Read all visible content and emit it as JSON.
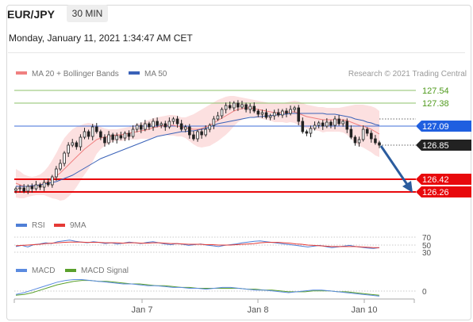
{
  "header": {
    "pair": "EUR/JPY",
    "timeframe": "30 MIN",
    "datetime": "Monday, January 11, 2021 1:34:47 AM CET"
  },
  "legend": {
    "ma20_bb": "MA 20 + Bollinger Bands",
    "ma50": "MA 50",
    "credit": "Research © 2021 Trading Central"
  },
  "colors": {
    "ma20": "#f08080",
    "band": "#fbd3d3",
    "ma50": "#3a62b8",
    "up": "#2a2a2a",
    "down": "#2a2a2a",
    "resistance": "#8cc06a",
    "pivot_line": "#3f6fd8",
    "support": "#e8090c",
    "arrow": "#2b5c9e",
    "rsi": "#4f7fd6",
    "rsi9ma": "#e53935",
    "macd": "#5b8be0",
    "macd_signal": "#5aa02c"
  },
  "levels": [
    {
      "value": "127.54",
      "kind": "resistance"
    },
    {
      "value": "127.38",
      "kind": "resistance"
    },
    {
      "value": "127.09",
      "kind": "pivot"
    },
    {
      "value": "126.85",
      "kind": "last"
    },
    {
      "value": "126.42",
      "kind": "support"
    },
    {
      "value": "126.26",
      "kind": "support"
    }
  ],
  "rsi_panel": {
    "label": "RSI",
    "ma_label": "9MA",
    "ticks": [
      "70",
      "50",
      "30"
    ]
  },
  "macd_panel": {
    "label": "MACD",
    "signal_label": "MACD Signal",
    "tick": "0"
  },
  "xaxis": [
    "Jan 7",
    "Jan 8",
    "Jan 10"
  ],
  "chart_data": {
    "type": "candlestick",
    "symbol": "EUR/JPY",
    "interval": "30 MIN",
    "ylim": [
      126.0,
      127.7
    ],
    "close_series": [
      126.3,
      126.31,
      126.27,
      126.33,
      126.3,
      126.35,
      126.32,
      126.38,
      126.35,
      126.45,
      126.55,
      126.62,
      126.75,
      126.85,
      126.88,
      126.83,
      126.95,
      127.02,
      126.96,
      127.08,
      127.02,
      126.95,
      126.88,
      126.98,
      126.92,
      126.97,
      126.94,
      127.0,
      126.96,
      127.05,
      127.1,
      127.05,
      127.12,
      127.08,
      127.15,
      127.1,
      127.12,
      127.08,
      127.15,
      127.18,
      127.12,
      127.05,
      127.08,
      126.98,
      126.93,
      127.02,
      126.98,
      127.05,
      127.1,
      127.18,
      127.22,
      127.3,
      127.35,
      127.32,
      127.38,
      127.33,
      127.36,
      127.3,
      127.34,
      127.28,
      127.24,
      127.26,
      127.2,
      127.22,
      127.26,
      127.23,
      127.28,
      127.25,
      127.3,
      127.32,
      127.15,
      127.02,
      127.0,
      127.06,
      127.1,
      127.13,
      127.09,
      127.14,
      127.1,
      127.18,
      127.12,
      127.15,
      127.05,
      126.95,
      126.88,
      126.92,
      127.05,
      127.0,
      126.93,
      126.88,
      126.85
    ],
    "ma20": [
      126.37,
      126.35,
      126.33,
      126.33,
      126.33,
      126.34,
      126.35,
      126.37,
      126.39,
      126.42,
      126.46,
      126.5,
      126.55,
      126.6,
      126.65,
      126.7,
      126.75,
      126.8,
      126.84,
      126.88,
      126.92,
      126.94,
      126.95,
      126.96,
      126.97,
      126.98,
      126.98,
      126.99,
      127.0,
      127.01,
      127.02,
      127.03,
      127.04,
      127.05,
      127.07,
      127.08,
      127.09,
      127.1,
      127.1,
      127.1,
      127.09,
      127.08,
      127.07,
      127.06,
      127.05,
      127.05,
      127.06,
      127.08,
      127.1,
      127.13,
      127.16,
      127.19,
      127.22,
      127.25,
      127.28,
      127.3,
      127.31,
      127.32,
      127.32,
      127.31,
      127.3,
      127.29,
      127.28,
      127.27,
      127.26,
      127.26,
      127.26,
      127.26,
      127.27,
      127.27,
      127.25,
      127.23,
      127.21,
      127.2,
      127.19,
      127.18,
      127.17,
      127.17,
      127.17,
      127.17,
      127.17,
      127.17,
      127.16,
      127.14,
      127.12,
      127.1,
      127.09,
      127.07,
      127.05,
      127.02,
      126.99
    ],
    "band_upper": [
      126.55,
      126.52,
      126.48,
      126.46,
      126.45,
      126.46,
      126.48,
      126.52,
      126.58,
      126.66,
      126.75,
      126.85,
      126.94,
      127.0,
      127.05,
      127.08,
      127.1,
      127.12,
      127.13,
      127.12,
      127.1,
      127.08,
      127.06,
      127.05,
      127.05,
      127.05,
      127.06,
      127.07,
      127.08,
      127.1,
      127.12,
      127.13,
      127.15,
      127.17,
      127.19,
      127.2,
      127.21,
      127.22,
      127.23,
      127.23,
      127.22,
      127.2,
      127.2,
      127.22,
      127.24,
      127.27,
      127.3,
      127.33,
      127.36,
      127.39,
      127.42,
      127.44,
      127.46,
      127.47,
      127.47,
      127.46,
      127.45,
      127.44,
      127.43,
      127.42,
      127.41,
      127.4,
      127.39,
      127.38,
      127.38,
      127.38,
      127.38,
      127.39,
      127.4,
      127.41,
      127.4,
      127.38,
      127.36,
      127.35,
      127.34,
      127.33,
      127.33,
      127.32,
      127.32,
      127.32,
      127.32,
      127.33,
      127.34,
      127.35,
      127.36,
      127.36,
      127.36,
      127.35,
      127.34,
      127.32,
      127.28
    ],
    "band_lower": [
      126.19,
      126.18,
      126.18,
      126.2,
      126.21,
      126.22,
      126.22,
      126.22,
      126.2,
      126.18,
      126.17,
      126.15,
      126.16,
      126.2,
      126.25,
      126.32,
      126.4,
      126.48,
      126.55,
      126.64,
      126.74,
      126.8,
      126.84,
      126.87,
      126.89,
      126.91,
      126.9,
      126.91,
      126.92,
      126.92,
      126.92,
      126.93,
      126.93,
      126.93,
      126.95,
      126.96,
      126.97,
      126.98,
      126.97,
      126.97,
      126.96,
      126.96,
      126.94,
      126.9,
      126.86,
      126.83,
      126.82,
      126.83,
      126.84,
      126.87,
      126.9,
      126.94,
      126.98,
      127.03,
      127.09,
      127.14,
      127.17,
      127.2,
      127.21,
      127.2,
      127.19,
      127.18,
      127.17,
      127.16,
      127.14,
      127.14,
      127.14,
      127.13,
      127.14,
      127.13,
      127.1,
      127.08,
      127.06,
      127.05,
      127.04,
      127.03,
      127.01,
      127.02,
      127.02,
      127.02,
      127.02,
      127.01,
      126.98,
      126.93,
      126.88,
      126.84,
      126.82,
      126.79,
      126.76,
      126.72,
      126.7
    ],
    "ma50": [
      126.33,
      126.33,
      126.33,
      126.33,
      126.34,
      126.34,
      126.35,
      126.36,
      126.37,
      126.38,
      126.39,
      126.41,
      126.43,
      126.45,
      126.47,
      126.5,
      126.53,
      126.56,
      126.59,
      126.62,
      126.65,
      126.68,
      126.7,
      126.72,
      126.74,
      126.76,
      126.78,
      126.8,
      126.82,
      126.84,
      126.86,
      126.88,
      126.9,
      126.92,
      126.94,
      126.96,
      126.97,
      126.98,
      126.99,
      127.0,
      127.01,
      127.02,
      127.02,
      127.03,
      127.03,
      127.04,
      127.05,
      127.06,
      127.08,
      127.1,
      127.12,
      127.13,
      127.14,
      127.15,
      127.16,
      127.17,
      127.18,
      127.19,
      127.2,
      127.2,
      127.21,
      127.21,
      127.22,
      127.22,
      127.23,
      127.23,
      127.24,
      127.24,
      127.25,
      127.25,
      127.25,
      127.25,
      127.25,
      127.25,
      127.25,
      127.25,
      127.25,
      127.24,
      127.24,
      127.24,
      127.23,
      127.22,
      127.21,
      127.2,
      127.18,
      127.17,
      127.16,
      127.14,
      127.13,
      127.11,
      127.1
    ],
    "rsi": [
      45,
      48,
      44,
      50,
      52,
      55,
      53,
      58,
      60,
      62,
      59,
      57,
      55,
      58,
      56,
      53,
      55,
      52,
      54,
      57,
      55,
      53,
      56,
      58,
      55,
      52,
      50,
      53,
      51,
      48,
      50,
      52,
      49,
      47,
      45,
      48,
      50,
      52,
      55,
      57,
      59,
      60,
      58,
      56,
      54,
      52,
      50,
      48,
      46,
      44,
      46,
      48,
      45,
      42,
      44,
      46,
      48,
      45,
      43,
      41,
      40,
      42
    ],
    "rsi_ma9": [
      47,
      48,
      49,
      50,
      51,
      53,
      54,
      55,
      56,
      57,
      57,
      57,
      56,
      56,
      56,
      55,
      55,
      55,
      54,
      55,
      55,
      54,
      54,
      55,
      55,
      54,
      53,
      53,
      52,
      51,
      51,
      51,
      50,
      50,
      49,
      49,
      49,
      50,
      51,
      52,
      53,
      55,
      56,
      56,
      56,
      55,
      54,
      52,
      51,
      49,
      48,
      47,
      46,
      45,
      45,
      45,
      45,
      45,
      44,
      43,
      42,
      42
    ],
    "macd": [
      -0.02,
      0.0,
      0.03,
      0.06,
      0.09,
      0.12,
      0.14,
      0.15,
      0.15,
      0.14,
      0.13,
      0.12,
      0.11,
      0.1,
      0.1,
      0.09,
      0.08,
      0.08,
      0.07,
      0.06,
      0.06,
      0.05,
      0.05,
      0.04,
      0.05,
      0.06,
      0.06,
      0.05,
      0.04,
      0.03,
      0.03,
      0.02,
      0.01,
      0.0,
      0.01,
      0.02,
      0.03,
      0.03,
      0.02,
      0.01,
      0.0,
      -0.01,
      -0.02,
      -0.03,
      -0.04
    ],
    "macd_signal": [
      -0.03,
      -0.02,
      0.0,
      0.03,
      0.06,
      0.09,
      0.11,
      0.13,
      0.14,
      0.14,
      0.13,
      0.13,
      0.12,
      0.11,
      0.1,
      0.1,
      0.09,
      0.08,
      0.08,
      0.07,
      0.06,
      0.06,
      0.05,
      0.05,
      0.05,
      0.05,
      0.05,
      0.05,
      0.04,
      0.04,
      0.03,
      0.03,
      0.02,
      0.01,
      0.01,
      0.01,
      0.02,
      0.02,
      0.02,
      0.01,
      0.01,
      0.0,
      -0.01,
      -0.02,
      -0.03
    ]
  }
}
